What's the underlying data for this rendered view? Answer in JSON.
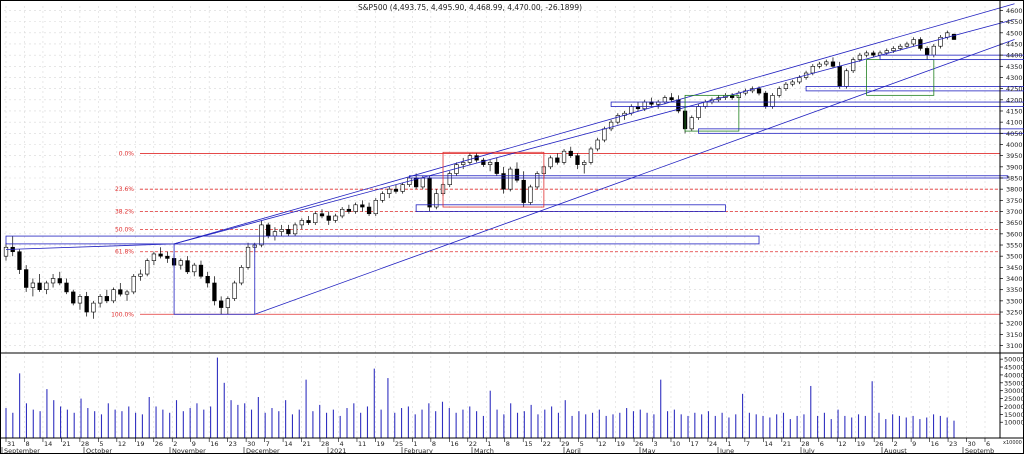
{
  "chart_data": {
    "type": "candlestick",
    "title": "S&P500 (4,493.75, 4,495.90, 4,468.99, 4,470.00, -26.1899)",
    "price_axis": {
      "ylim": [
        3080,
        4620
      ],
      "ticks": [
        "4600",
        "4550",
        "4500",
        "4450",
        "4400",
        "4350",
        "4300",
        "4250",
        "4200",
        "4150",
        "4100",
        "4050",
        "4000",
        "3950",
        "3900",
        "3850",
        "3800",
        "3750",
        "3700",
        "3650",
        "3600",
        "3550",
        "3500",
        "3450",
        "3400",
        "3350",
        "3300",
        "3250",
        "3200",
        "3150",
        "3100"
      ]
    },
    "volume_axis": {
      "ylim": [
        0,
        52000
      ],
      "ticks": [
        "50000",
        "45000",
        "40000",
        "35000",
        "30000",
        "25000",
        "20000",
        "15000",
        "10000"
      ],
      "unit_label": "x10000"
    },
    "fib_levels": [
      {
        "label": "0.0%",
        "price": 3960
      },
      {
        "label": "23.6%",
        "price": 3800
      },
      {
        "label": "38.2%",
        "price": 3700
      },
      {
        "label": "50.0%",
        "price": 3620
      },
      {
        "label": "61.8%",
        "price": 3520
      },
      {
        "label": "100.0%",
        "price": 3240
      }
    ],
    "day_labels": [
      "31",
      "8",
      "14",
      "21",
      "28",
      "5",
      "12",
      "19",
      "26",
      "2",
      "9",
      "16",
      "23",
      "30",
      "7",
      "14",
      "21",
      "28",
      "4",
      "11",
      "19",
      "25",
      "1",
      "8",
      "16",
      "22",
      "1",
      "8",
      "15",
      "22",
      "29",
      "5",
      "12",
      "19",
      "26",
      "3",
      "10",
      "17",
      "24",
      "1",
      "7",
      "14",
      "21",
      "28",
      "6",
      "12",
      "19",
      "26",
      "2",
      "9",
      "16",
      "23",
      "30",
      "6"
    ],
    "month_labels": [
      "September",
      "October",
      "November",
      "December",
      "2021",
      "February",
      "March",
      "April",
      "May",
      "June",
      "July",
      "August",
      "Septemb"
    ],
    "candles": [
      {
        "o": 3500,
        "h": 3560,
        "l": 3480,
        "c": 3540
      },
      {
        "o": 3540,
        "h": 3590,
        "l": 3500,
        "c": 3520
      },
      {
        "o": 3520,
        "h": 3530,
        "l": 3420,
        "c": 3440
      },
      {
        "o": 3440,
        "h": 3460,
        "l": 3340,
        "c": 3360
      },
      {
        "o": 3360,
        "h": 3400,
        "l": 3320,
        "c": 3380
      },
      {
        "o": 3380,
        "h": 3420,
        "l": 3340,
        "c": 3350
      },
      {
        "o": 3350,
        "h": 3390,
        "l": 3330,
        "c": 3380
      },
      {
        "o": 3380,
        "h": 3420,
        "l": 3360,
        "c": 3400
      },
      {
        "o": 3400,
        "h": 3430,
        "l": 3370,
        "c": 3380
      },
      {
        "o": 3380,
        "h": 3400,
        "l": 3330,
        "c": 3340
      },
      {
        "o": 3340,
        "h": 3350,
        "l": 3280,
        "c": 3290
      },
      {
        "o": 3290,
        "h": 3330,
        "l": 3260,
        "c": 3320
      },
      {
        "o": 3320,
        "h": 3340,
        "l": 3230,
        "c": 3250
      },
      {
        "o": 3250,
        "h": 3300,
        "l": 3220,
        "c": 3290
      },
      {
        "o": 3290,
        "h": 3330,
        "l": 3270,
        "c": 3320
      },
      {
        "o": 3320,
        "h": 3350,
        "l": 3290,
        "c": 3300
      },
      {
        "o": 3300,
        "h": 3360,
        "l": 3290,
        "c": 3350
      },
      {
        "o": 3350,
        "h": 3380,
        "l": 3320,
        "c": 3330
      },
      {
        "o": 3330,
        "h": 3350,
        "l": 3300,
        "c": 3340
      },
      {
        "o": 3340,
        "h": 3420,
        "l": 3330,
        "c": 3410
      },
      {
        "o": 3410,
        "h": 3440,
        "l": 3390,
        "c": 3420
      },
      {
        "o": 3420,
        "h": 3490,
        "l": 3410,
        "c": 3480
      },
      {
        "o": 3480,
        "h": 3520,
        "l": 3460,
        "c": 3510
      },
      {
        "o": 3510,
        "h": 3540,
        "l": 3490,
        "c": 3500
      },
      {
        "o": 3500,
        "h": 3520,
        "l": 3470,
        "c": 3490
      },
      {
        "o": 3490,
        "h": 3510,
        "l": 3450,
        "c": 3460
      },
      {
        "o": 3460,
        "h": 3490,
        "l": 3440,
        "c": 3480
      },
      {
        "o": 3480,
        "h": 3500,
        "l": 3420,
        "c": 3430
      },
      {
        "o": 3430,
        "h": 3470,
        "l": 3410,
        "c": 3460
      },
      {
        "o": 3460,
        "h": 3480,
        "l": 3400,
        "c": 3410
      },
      {
        "o": 3410,
        "h": 3430,
        "l": 3360,
        "c": 3380
      },
      {
        "o": 3380,
        "h": 3410,
        "l": 3280,
        "c": 3300
      },
      {
        "o": 3300,
        "h": 3320,
        "l": 3240,
        "c": 3270
      },
      {
        "o": 3270,
        "h": 3320,
        "l": 3240,
        "c": 3310
      },
      {
        "o": 3310,
        "h": 3390,
        "l": 3300,
        "c": 3380
      },
      {
        "o": 3380,
        "h": 3460,
        "l": 3370,
        "c": 3450
      },
      {
        "o": 3450,
        "h": 3560,
        "l": 3440,
        "c": 3540
      },
      {
        "o": 3540,
        "h": 3560,
        "l": 3520,
        "c": 3550
      },
      {
        "o": 3550,
        "h": 3660,
        "l": 3540,
        "c": 3640
      },
      {
        "o": 3640,
        "h": 3650,
        "l": 3580,
        "c": 3590
      },
      {
        "o": 3590,
        "h": 3630,
        "l": 3570,
        "c": 3610
      },
      {
        "o": 3610,
        "h": 3640,
        "l": 3590,
        "c": 3620
      },
      {
        "o": 3620,
        "h": 3640,
        "l": 3590,
        "c": 3600
      },
      {
        "o": 3600,
        "h": 3650,
        "l": 3590,
        "c": 3640
      },
      {
        "o": 3640,
        "h": 3670,
        "l": 3620,
        "c": 3660
      },
      {
        "o": 3660,
        "h": 3680,
        "l": 3640,
        "c": 3650
      },
      {
        "o": 3650,
        "h": 3700,
        "l": 3640,
        "c": 3690
      },
      {
        "o": 3690,
        "h": 3710,
        "l": 3670,
        "c": 3680
      },
      {
        "o": 3680,
        "h": 3700,
        "l": 3640,
        "c": 3660
      },
      {
        "o": 3660,
        "h": 3690,
        "l": 3650,
        "c": 3680
      },
      {
        "o": 3680,
        "h": 3720,
        "l": 3670,
        "c": 3710
      },
      {
        "o": 3710,
        "h": 3730,
        "l": 3690,
        "c": 3700
      },
      {
        "o": 3700,
        "h": 3740,
        "l": 3690,
        "c": 3730
      },
      {
        "o": 3730,
        "h": 3750,
        "l": 3700,
        "c": 3720
      },
      {
        "o": 3720,
        "h": 3740,
        "l": 3680,
        "c": 3690
      },
      {
        "o": 3690,
        "h": 3760,
        "l": 3680,
        "c": 3750
      },
      {
        "o": 3750,
        "h": 3790,
        "l": 3740,
        "c": 3780
      },
      {
        "o": 3780,
        "h": 3810,
        "l": 3760,
        "c": 3800
      },
      {
        "o": 3800,
        "h": 3820,
        "l": 3780,
        "c": 3790
      },
      {
        "o": 3790,
        "h": 3830,
        "l": 3780,
        "c": 3820
      },
      {
        "o": 3820,
        "h": 3860,
        "l": 3810,
        "c": 3850
      },
      {
        "o": 3850,
        "h": 3870,
        "l": 3800,
        "c": 3810
      },
      {
        "o": 3810,
        "h": 3860,
        "l": 3800,
        "c": 3850
      },
      {
        "o": 3850,
        "h": 3860,
        "l": 3700,
        "c": 3720
      },
      {
        "o": 3720,
        "h": 3800,
        "l": 3710,
        "c": 3780
      },
      {
        "o": 3780,
        "h": 3830,
        "l": 3770,
        "c": 3820
      },
      {
        "o": 3820,
        "h": 3880,
        "l": 3810,
        "c": 3870
      },
      {
        "o": 3870,
        "h": 3920,
        "l": 3860,
        "c": 3910
      },
      {
        "o": 3910,
        "h": 3940,
        "l": 3890,
        "c": 3920
      },
      {
        "o": 3920,
        "h": 3960,
        "l": 3910,
        "c": 3950
      },
      {
        "o": 3950,
        "h": 3960,
        "l": 3920,
        "c": 3930
      },
      {
        "o": 3930,
        "h": 3940,
        "l": 3900,
        "c": 3910
      },
      {
        "o": 3910,
        "h": 3930,
        "l": 3880,
        "c": 3920
      },
      {
        "o": 3920,
        "h": 3940,
        "l": 3860,
        "c": 3870
      },
      {
        "o": 3870,
        "h": 3900,
        "l": 3780,
        "c": 3800
      },
      {
        "o": 3800,
        "h": 3900,
        "l": 3790,
        "c": 3890
      },
      {
        "o": 3890,
        "h": 3920,
        "l": 3830,
        "c": 3840
      },
      {
        "o": 3840,
        "h": 3880,
        "l": 3720,
        "c": 3740
      },
      {
        "o": 3740,
        "h": 3820,
        "l": 3730,
        "c": 3810
      },
      {
        "o": 3810,
        "h": 3880,
        "l": 3800,
        "c": 3870
      },
      {
        "o": 3870,
        "h": 3910,
        "l": 3850,
        "c": 3900
      },
      {
        "o": 3900,
        "h": 3950,
        "l": 3890,
        "c": 3940
      },
      {
        "o": 3940,
        "h": 3960,
        "l": 3910,
        "c": 3920
      },
      {
        "o": 3920,
        "h": 3980,
        "l": 3910,
        "c": 3970
      },
      {
        "o": 3970,
        "h": 3990,
        "l": 3940,
        "c": 3950
      },
      {
        "o": 3950,
        "h": 3960,
        "l": 3890,
        "c": 3910
      },
      {
        "o": 3910,
        "h": 3930,
        "l": 3870,
        "c": 3920
      },
      {
        "o": 3920,
        "h": 3990,
        "l": 3910,
        "c": 3980
      },
      {
        "o": 3980,
        "h": 4030,
        "l": 3970,
        "c": 4020
      },
      {
        "o": 4020,
        "h": 4080,
        "l": 4010,
        "c": 4070
      },
      {
        "o": 4070,
        "h": 4110,
        "l": 4060,
        "c": 4100
      },
      {
        "o": 4100,
        "h": 4140,
        "l": 4090,
        "c": 4130
      },
      {
        "o": 4130,
        "h": 4150,
        "l": 4110,
        "c": 4140
      },
      {
        "o": 4140,
        "h": 4180,
        "l": 4130,
        "c": 4170
      },
      {
        "o": 4170,
        "h": 4190,
        "l": 4150,
        "c": 4160
      },
      {
        "o": 4160,
        "h": 4200,
        "l": 4150,
        "c": 4190
      },
      {
        "o": 4190,
        "h": 4210,
        "l": 4170,
        "c": 4180
      },
      {
        "o": 4180,
        "h": 4200,
        "l": 4160,
        "c": 4190
      },
      {
        "o": 4190,
        "h": 4220,
        "l": 4180,
        "c": 4210
      },
      {
        "o": 4210,
        "h": 4230,
        "l": 4190,
        "c": 4200
      },
      {
        "o": 4200,
        "h": 4220,
        "l": 4140,
        "c": 4150
      },
      {
        "o": 4150,
        "h": 4160,
        "l": 4050,
        "c": 4070
      },
      {
        "o": 4070,
        "h": 4130,
        "l": 4060,
        "c": 4120
      },
      {
        "o": 4120,
        "h": 4180,
        "l": 4110,
        "c": 4170
      },
      {
        "o": 4170,
        "h": 4200,
        "l": 4160,
        "c": 4190
      },
      {
        "o": 4190,
        "h": 4210,
        "l": 4180,
        "c": 4200
      },
      {
        "o": 4200,
        "h": 4220,
        "l": 4190,
        "c": 4210
      },
      {
        "o": 4210,
        "h": 4230,
        "l": 4200,
        "c": 4220
      },
      {
        "o": 4220,
        "h": 4230,
        "l": 4200,
        "c": 4210
      },
      {
        "o": 4210,
        "h": 4240,
        "l": 4200,
        "c": 4230
      },
      {
        "o": 4230,
        "h": 4250,
        "l": 4220,
        "c": 4240
      },
      {
        "o": 4240,
        "h": 4260,
        "l": 4230,
        "c": 4250
      },
      {
        "o": 4250,
        "h": 4260,
        "l": 4220,
        "c": 4230
      },
      {
        "o": 4230,
        "h": 4240,
        "l": 4160,
        "c": 4170
      },
      {
        "o": 4170,
        "h": 4230,
        "l": 4160,
        "c": 4220
      },
      {
        "o": 4220,
        "h": 4260,
        "l": 4210,
        "c": 4250
      },
      {
        "o": 4250,
        "h": 4280,
        "l": 4240,
        "c": 4270
      },
      {
        "o": 4270,
        "h": 4290,
        "l": 4260,
        "c": 4280
      },
      {
        "o": 4280,
        "h": 4310,
        "l": 4270,
        "c": 4300
      },
      {
        "o": 4300,
        "h": 4330,
        "l": 4290,
        "c": 4320
      },
      {
        "o": 4320,
        "h": 4360,
        "l": 4310,
        "c": 4350
      },
      {
        "o": 4350,
        "h": 4370,
        "l": 4340,
        "c": 4360
      },
      {
        "o": 4360,
        "h": 4380,
        "l": 4350,
        "c": 4370
      },
      {
        "o": 4370,
        "h": 4390,
        "l": 4340,
        "c": 4350
      },
      {
        "o": 4350,
        "h": 4370,
        "l": 4250,
        "c": 4260
      },
      {
        "o": 4260,
        "h": 4340,
        "l": 4250,
        "c": 4330
      },
      {
        "o": 4330,
        "h": 4390,
        "l": 4320,
        "c": 4380
      },
      {
        "o": 4380,
        "h": 4410,
        "l": 4370,
        "c": 4400
      },
      {
        "o": 4400,
        "h": 4420,
        "l": 4390,
        "c": 4410
      },
      {
        "o": 4410,
        "h": 4420,
        "l": 4390,
        "c": 4400
      },
      {
        "o": 4400,
        "h": 4420,
        "l": 4390,
        "c": 4410
      },
      {
        "o": 4410,
        "h": 4430,
        "l": 4400,
        "c": 4420
      },
      {
        "o": 4420,
        "h": 4440,
        "l": 4410,
        "c": 4430
      },
      {
        "o": 4430,
        "h": 4450,
        "l": 4420,
        "c": 4440
      },
      {
        "o": 4440,
        "h": 4460,
        "l": 4430,
        "c": 4450
      },
      {
        "o": 4450,
        "h": 4480,
        "l": 4440,
        "c": 4470
      },
      {
        "o": 4470,
        "h": 4480,
        "l": 4420,
        "c": 4430
      },
      {
        "o": 4430,
        "h": 4440,
        "l": 4380,
        "c": 4400
      },
      {
        "o": 4400,
        "h": 4450,
        "l": 4390,
        "c": 4440
      },
      {
        "o": 4440,
        "h": 4490,
        "l": 4430,
        "c": 4480
      },
      {
        "o": 4480,
        "h": 4510,
        "l": 4470,
        "c": 4500
      },
      {
        "o": 4493.75,
        "h": 4495.9,
        "l": 4468.99,
        "c": 4470
      }
    ],
    "volumes": [
      19000,
      16000,
      30000,
      22000,
      18000,
      17000,
      31000,
      24000,
      20000,
      18000,
      16000,
      25000,
      19000,
      17000,
      15000,
      22000,
      18000,
      17000,
      20000,
      16000,
      15000,
      26000,
      20000,
      18000,
      16000,
      24000,
      17000,
      19000,
      22000,
      18000,
      20000,
      28000,
      35000,
      24000,
      21000,
      22000,
      18000,
      26000,
      16000,
      19000,
      17000,
      24000,
      15000,
      18000,
      20000,
      17000,
      21000,
      16000,
      18000,
      14000,
      19000,
      22000,
      16000,
      20000,
      28000,
      18000,
      17000,
      16000,
      19000,
      20000,
      15000,
      18000,
      22000,
      17000,
      23000,
      19000,
      16000,
      18000,
      20000,
      17000,
      14000,
      16000,
      18000,
      15000,
      22000,
      16000,
      17000,
      21000,
      15000,
      18000,
      20000,
      16000,
      24000,
      14000,
      17000,
      15000,
      16000,
      18000,
      14000,
      15000,
      16000,
      19000,
      17000,
      18000,
      16000,
      15000,
      14000,
      17000,
      18000,
      15000,
      14000,
      16000,
      15000,
      17000,
      14000,
      16000,
      13000,
      15000,
      14000,
      16000,
      15000,
      14000,
      13000,
      15000,
      16000,
      12000,
      14000,
      15000,
      13000,
      14000,
      16000,
      12000,
      18000,
      14000,
      13000,
      15000,
      14000,
      13000,
      16000,
      12000,
      15000,
      14000,
      13000,
      14000,
      12000,
      13000,
      15000,
      14000,
      13000,
      11000
    ],
    "volume_spikes": [
      {
        "i": 2,
        "v": 41000
      },
      {
        "i": 31,
        "v": 51000
      },
      {
        "i": 44,
        "v": 37000
      },
      {
        "i": 54,
        "v": 44000
      },
      {
        "i": 71,
        "v": 30000
      },
      {
        "i": 96,
        "v": 37000
      },
      {
        "i": 118,
        "v": 33000
      },
      {
        "i": 140,
        "v": 40000
      },
      {
        "i": 56,
        "v": 38000
      },
      {
        "i": 108,
        "v": 28000
      },
      {
        "i": 127,
        "v": 36000
      }
    ]
  }
}
